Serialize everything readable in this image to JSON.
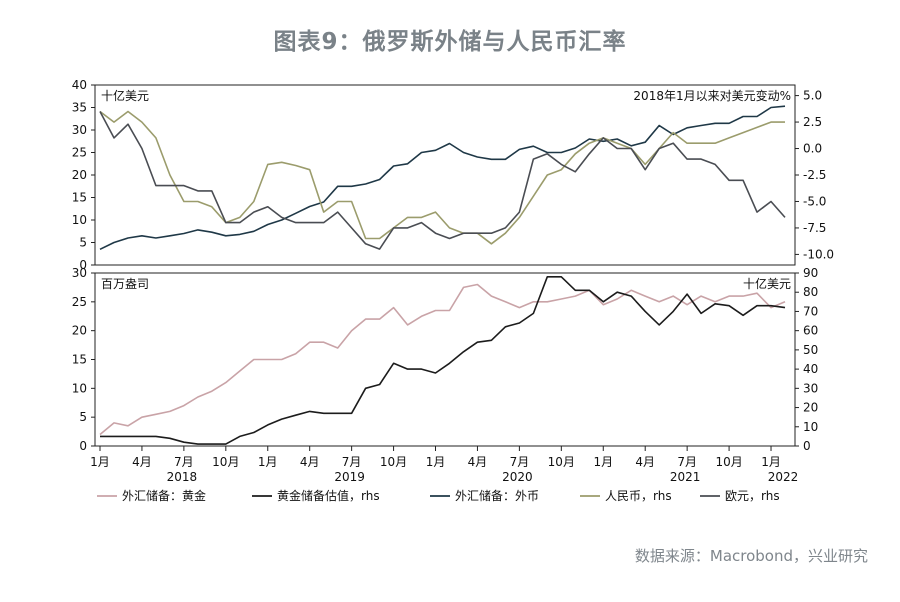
{
  "title": "图表9：俄罗斯外储与人民币汇率",
  "source": "数据来源：Macrobond，兴业研究",
  "colors": {
    "gold_value": "#c9a3a7",
    "gold_usd": "#1c1c1c",
    "fx": "#1f3847",
    "rmb": "#9b9c6c",
    "eur": "#4a4d53"
  },
  "chart_data": [
    {
      "type": "line",
      "name": "top",
      "left_unit": "十亿美元",
      "right_unit": "2018年1月以来对美元变动%",
      "ylim_left": [
        0,
        40
      ],
      "ylim_right": [
        -11,
        6
      ],
      "left_ticks": [
        "0",
        "5",
        "10",
        "15",
        "20",
        "25",
        "30",
        "35",
        "40"
      ],
      "right_ticks": [
        "-10.0",
        "-7.5",
        "-5.0",
        "-2.5",
        "0.0",
        "2.5",
        "5.0"
      ],
      "series": [
        {
          "name": "外汇储备：外币",
          "axis": "left",
          "color_key": "fx",
          "values": [
            3.5,
            5,
            6,
            6.5,
            6,
            6.5,
            7,
            7.8,
            7.3,
            6.5,
            6.8,
            7.5,
            9,
            10,
            11.5,
            13,
            14,
            17.5,
            17.5,
            18,
            19,
            22,
            22.5,
            25,
            25.5,
            27,
            25,
            24,
            23.5,
            23.5,
            25.7,
            26.4,
            25,
            25,
            26,
            28,
            27.5,
            28,
            26.5,
            27.3,
            31,
            29,
            30.5,
            31,
            31.5,
            31.5,
            33,
            33,
            35,
            35.3
          ]
        },
        {
          "name": "人民币，rhs",
          "axis": "right",
          "color_key": "rmb",
          "values": [
            3.5,
            2.5,
            3.5,
            2.5,
            1,
            -2.5,
            -5,
            -5,
            -5.5,
            -7,
            -6.5,
            -5,
            -1.5,
            -1.3,
            -1.6,
            -2,
            -6,
            -5,
            -5,
            -8.5,
            -8.5,
            -7.5,
            -6.5,
            -6.5,
            -6,
            -7.5,
            -8,
            -8,
            -9,
            -8,
            -6.5,
            -4.5,
            -2.5,
            -2,
            -0.5,
            0.5,
            1,
            0.5,
            0,
            -1.5,
            0,
            1.5,
            0.5,
            0.5,
            0.5,
            1,
            1.5,
            2,
            2.5,
            2.5
          ]
        },
        {
          "name": "欧元，rhs",
          "axis": "right",
          "color_key": "eur",
          "values": [
            3.5,
            1,
            2.3,
            0,
            -3.5,
            -3.5,
            -3.5,
            -4,
            -4,
            -7,
            -7,
            -6,
            -5.5,
            -6.5,
            -7,
            -7,
            -7,
            -6,
            -7.5,
            -9,
            -9.5,
            -7.5,
            -7.5,
            -7,
            -8,
            -8.5,
            -8,
            -8,
            -8,
            -7.5,
            -6,
            -1,
            -0.5,
            -1.5,
            -2.2,
            -0.5,
            1,
            0,
            0,
            -2,
            0,
            0.5,
            -1,
            -1,
            -1.5,
            -3,
            -3,
            -6,
            -5,
            -6.5
          ]
        }
      ]
    },
    {
      "type": "line",
      "name": "bottom",
      "left_unit": "百万盎司",
      "right_unit": "十亿美元",
      "ylim_left": [
        0,
        30
      ],
      "ylim_right": [
        0,
        90
      ],
      "left_ticks": [
        "0",
        "5",
        "10",
        "15",
        "20",
        "25",
        "30"
      ],
      "right_ticks": [
        "0",
        "10",
        "20",
        "30",
        "40",
        "50",
        "60",
        "70",
        "80",
        "90"
      ],
      "x_tick_labels": [
        "1月",
        "4月",
        "7月",
        "10月",
        "1月",
        "4月",
        "7月",
        "10月",
        "1月",
        "4月",
        "7月",
        "10月",
        "1月",
        "4月",
        "7月",
        "10月",
        "1月"
      ],
      "years": [
        "2018",
        "2019",
        "2020",
        "2021",
        "2022"
      ],
      "series": [
        {
          "name": "外汇储备：黄金",
          "axis": "left",
          "color_key": "gold_value",
          "values": [
            2,
            4,
            3.5,
            5,
            5.5,
            6,
            7,
            8.5,
            9.5,
            11,
            13,
            15,
            15,
            15,
            16,
            18,
            18,
            17,
            20,
            22,
            22,
            24,
            21,
            22.5,
            23.5,
            23.5,
            27.5,
            28,
            26,
            25,
            24,
            25,
            25,
            25.5,
            26,
            27,
            24.5,
            25.5,
            27,
            26,
            25,
            26,
            24.5,
            26,
            25,
            26,
            26,
            26.5,
            24,
            25
          ]
        },
        {
          "name": "黄金储备估值，rhs",
          "axis": "right",
          "color_key": "gold_usd",
          "values": [
            5,
            5,
            5,
            5,
            5,
            4,
            2,
            1,
            1,
            1,
            5,
            7,
            11,
            14,
            16,
            18,
            17,
            17,
            17,
            30,
            32,
            43,
            40,
            40,
            38,
            43,
            49,
            54,
            55,
            62,
            64,
            69,
            88,
            88,
            81,
            81,
            75,
            80,
            78,
            70,
            63,
            70,
            79,
            69,
            74,
            73,
            68,
            73,
            73,
            72
          ]
        }
      ],
      "legend": [
        "外汇储备：黄金",
        "黄金储备估值，rhs",
        "外汇储备：外币",
        "人民币，rhs",
        "欧元，rhs"
      ]
    }
  ]
}
